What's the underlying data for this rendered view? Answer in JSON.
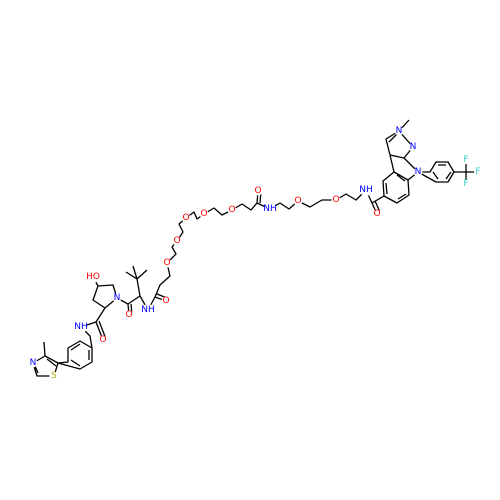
{
  "labels": [
    "HO",
    "N",
    "O",
    "NH",
    "O",
    "O",
    "NH",
    "N",
    "S",
    "O",
    "O",
    "O",
    "O",
    "O",
    "O",
    "NH",
    "O",
    "O",
    "NH",
    "O",
    "N",
    "N",
    "N",
    "F",
    "F",
    "F"
  ]
}
